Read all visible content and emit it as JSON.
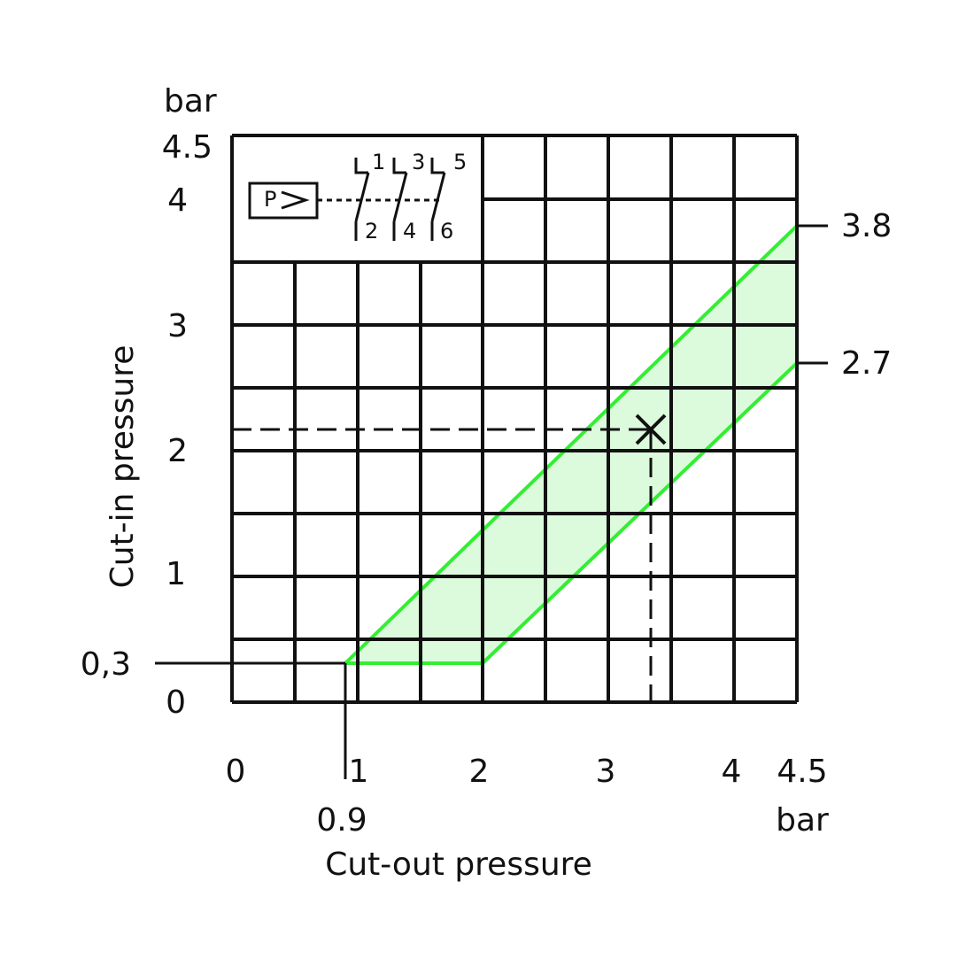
{
  "y_axis": {
    "unit": "bar",
    "title": "Cut-in pressure",
    "ticks": [
      "4.5",
      "4",
      "3",
      "2",
      "1",
      "0"
    ]
  },
  "x_axis": {
    "unit": "bar",
    "title": "Cut-out pressure",
    "ticks": [
      "0",
      "1",
      "2",
      "3",
      "4",
      "4.5"
    ]
  },
  "annotations": {
    "min_cut_in": "0,3",
    "min_cut_out": "0.9",
    "upper_limit": "3.8",
    "lower_limit": "2.7"
  },
  "symbol": {
    "label": "P",
    "contacts": [
      "1",
      "3",
      "5",
      "2",
      "4",
      "6"
    ]
  }
}
